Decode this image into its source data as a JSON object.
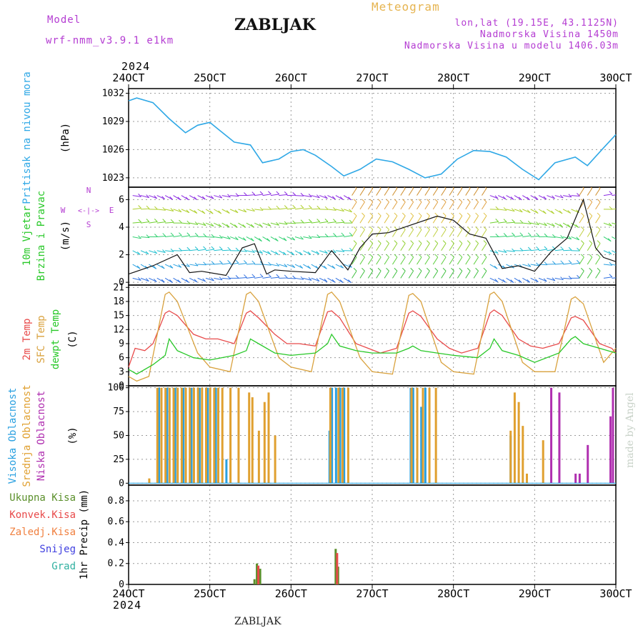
{
  "header": {
    "model_label": "Model",
    "model_name": "wrf-nmm_v3.9.1 e1km",
    "station": "ZABLJAK",
    "chart_title": "Meteogram",
    "lonlat": "lon,lat (19.15E, 43.1125N)",
    "altitude": "Nadmorska Visina 1450m",
    "model_altitude": "Nadmorska Visina u modelu 1406.03m",
    "year_top": "2024",
    "year_bottom": "2024",
    "footer_station": "ZABLJAK",
    "credit": "made by Angel"
  },
  "colors": {
    "pressure": "#2fa8e6",
    "temp2m": "#e84a4a",
    "sfc": "#d9a23e",
    "dew": "#28c828",
    "high": "#2aa0e0",
    "mid": "#e0a030",
    "low": "#b030b0",
    "wind_speed": "#111111",
    "precip_total": "#5a8f2a",
    "precip_conv": "#e84a4a",
    "precip_frozen": "#f08040",
    "snow": "#4040e0",
    "hail": "#30b0a0",
    "violet": "#b43cd2"
  },
  "chart_data": [
    {
      "type": "line",
      "panel": "pressure",
      "ylabels": [
        "Pritisak na nivou mora",
        "(hPa)"
      ],
      "x_ticks": [
        "24OCT",
        "25OCT",
        "26OCT",
        "27OCT",
        "28OCT",
        "29OCT",
        "30OCT"
      ],
      "y_ticks": [
        1023,
        1026,
        1029,
        1032
      ],
      "ylim": [
        1022,
        1032.5
      ],
      "series": [
        {
          "x": [
            0,
            0.1,
            0.3,
            0.5,
            0.7,
            0.85,
            1.0,
            1.1,
            1.3,
            1.5,
            1.65,
            1.85,
            2.0,
            2.15,
            2.3,
            2.5,
            2.65,
            2.85,
            3.05,
            3.25,
            3.45,
            3.65,
            3.85,
            4.05,
            4.25,
            4.45,
            4.65,
            4.85,
            5.05,
            5.25,
            5.5,
            5.65,
            5.85,
            6.0
          ],
          "values": [
            1031.2,
            1031.5,
            1031.0,
            1029.3,
            1027.8,
            1028.6,
            1028.9,
            1028.2,
            1026.8,
            1026.5,
            1024.6,
            1025.0,
            1025.8,
            1026.0,
            1025.4,
            1024.2,
            1023.2,
            1023.9,
            1025.0,
            1024.7,
            1023.9,
            1023.0,
            1023.4,
            1025.0,
            1025.9,
            1025.8,
            1025.2,
            1023.9,
            1022.8,
            1024.6,
            1025.2,
            1024.3,
            1026.2,
            1027.6
          ]
        }
      ]
    },
    {
      "type": "line",
      "panel": "wind",
      "ylabels": [
        "10m Vjetar",
        "Brzina i Pravac",
        "(m/s)"
      ],
      "compass": [
        "N",
        "S",
        "W",
        "E",
        "<-|->"
      ],
      "y_ticks": [
        0,
        2,
        4,
        6
      ],
      "ylim": [
        -0.2,
        6.9
      ],
      "series": [
        {
          "name": "speed",
          "x": [
            0,
            0.3,
            0.6,
            0.75,
            0.9,
            1.2,
            1.4,
            1.55,
            1.7,
            1.8,
            2.0,
            2.3,
            2.5,
            2.7,
            2.85,
            3.0,
            3.2,
            3.5,
            3.8,
            4.0,
            4.2,
            4.4,
            4.6,
            4.8,
            5.0,
            5.2,
            5.4,
            5.6,
            5.75,
            5.85,
            6.0
          ],
          "values": [
            0.6,
            1.2,
            2.0,
            0.7,
            0.8,
            0.5,
            2.5,
            2.8,
            0.6,
            0.9,
            0.8,
            0.7,
            2.3,
            0.9,
            2.5,
            3.5,
            3.6,
            4.2,
            4.8,
            4.5,
            3.5,
            3.2,
            1.0,
            1.2,
            0.8,
            2.2,
            3.2,
            6.0,
            2.5,
            1.8,
            1.5
          ]
        }
      ]
    },
    {
      "type": "line",
      "panel": "temperature",
      "ylabels": [
        "2m Temp",
        "SFC Temp",
        "dewpt Temp",
        "(C)"
      ],
      "y_ticks": [
        0,
        3,
        6,
        9,
        12,
        15,
        18,
        21
      ],
      "ylim": [
        0,
        21.5
      ],
      "series": [
        {
          "name": "2m Temp",
          "x": [
            0,
            0.08,
            0.2,
            0.3,
            0.45,
            0.5,
            0.6,
            0.8,
            0.95,
            1.1,
            1.3,
            1.45,
            1.5,
            1.6,
            1.8,
            1.95,
            2.1,
            2.3,
            2.45,
            2.5,
            2.6,
            2.8,
            2.95,
            3.1,
            3.3,
            3.45,
            3.5,
            3.6,
            3.8,
            3.95,
            4.1,
            4.3,
            4.45,
            4.5,
            4.6,
            4.8,
            4.95,
            5.1,
            5.3,
            5.45,
            5.5,
            5.6,
            5.8,
            5.95,
            6.0
          ],
          "values": [
            4,
            8,
            7.5,
            9,
            15.5,
            16,
            15,
            11,
            10,
            10,
            9,
            15.5,
            16,
            14.5,
            11,
            9,
            9,
            8.5,
            15.8,
            16,
            14.5,
            9,
            8,
            7,
            8,
            15.5,
            16,
            14.8,
            10,
            8,
            7,
            8,
            15.5,
            16.2,
            15,
            10,
            8.5,
            8,
            9,
            14.5,
            14.8,
            14,
            9,
            8,
            7
          ]
        },
        {
          "name": "SFC Temp",
          "x": [
            0,
            0.1,
            0.25,
            0.45,
            0.5,
            0.6,
            0.85,
            1.0,
            1.25,
            1.45,
            1.5,
            1.6,
            1.85,
            2.0,
            2.25,
            2.45,
            2.5,
            2.6,
            2.85,
            3.0,
            3.25,
            3.45,
            3.5,
            3.6,
            3.85,
            4.0,
            4.25,
            4.45,
            4.5,
            4.6,
            4.85,
            5.0,
            5.25,
            5.45,
            5.5,
            5.6,
            5.85,
            6.0
          ],
          "values": [
            2,
            1,
            2,
            19.5,
            20,
            18,
            7,
            4,
            3,
            19.5,
            20,
            18,
            6,
            4,
            3,
            19.5,
            20,
            18,
            6,
            3,
            2.5,
            19.3,
            19.7,
            18,
            5,
            3,
            2.5,
            19.5,
            20,
            18,
            5,
            3,
            3,
            18.5,
            19,
            17.5,
            5,
            8
          ]
        },
        {
          "name": "dewpt Temp",
          "x": [
            0,
            0.1,
            0.3,
            0.45,
            0.5,
            0.6,
            0.8,
            1.0,
            1.3,
            1.45,
            1.5,
            1.6,
            1.8,
            2.0,
            2.3,
            2.45,
            2.5,
            2.6,
            2.8,
            3.0,
            3.3,
            3.45,
            3.5,
            3.6,
            3.8,
            4.0,
            4.3,
            4.45,
            4.5,
            4.6,
            4.8,
            5.0,
            5.3,
            5.45,
            5.5,
            5.6,
            5.8,
            6.0
          ],
          "values": [
            3.5,
            2.5,
            4.5,
            6.5,
            10,
            7.5,
            6,
            5.5,
            6.5,
            7.5,
            10,
            9,
            7,
            6.5,
            7,
            9,
            11,
            8.5,
            7.5,
            7,
            7,
            8,
            8.5,
            7.5,
            7,
            6.5,
            6,
            8,
            10,
            7.5,
            6.5,
            5,
            7,
            10,
            10.5,
            9,
            8,
            7
          ]
        }
      ]
    },
    {
      "type": "bar",
      "panel": "clouds",
      "ylabels": [
        "Visoka Oblacnost",
        "Srednja Oblacnost",
        "Niska Oblacnost",
        "(%)"
      ],
      "y_ticks": [
        0,
        25,
        50,
        75,
        100
      ],
      "ylim": [
        -2,
        102
      ],
      "series": [
        {
          "name": "Visoka Oblacnost",
          "x": [
            0.37,
            0.47,
            0.57,
            0.67,
            0.77,
            0.87,
            0.97,
            1.07,
            1.2,
            2.47,
            2.5,
            2.55,
            2.6,
            2.65,
            3.47,
            3.5,
            3.55,
            3.6,
            3.65,
            4.7
          ],
          "values": [
            100,
            100,
            100,
            100,
            100,
            100,
            100,
            100,
            25,
            55,
            100,
            100,
            100,
            100,
            100,
            100,
            100,
            80,
            100,
            50
          ]
        },
        {
          "name": "Srednja Oblacnost",
          "x": [
            0.25,
            0.35,
            0.4,
            0.45,
            0.5,
            0.55,
            0.6,
            0.65,
            0.7,
            0.75,
            0.8,
            0.85,
            0.9,
            0.95,
            1.0,
            1.05,
            1.1,
            1.15,
            1.25,
            1.35,
            1.48,
            1.52,
            1.6,
            1.67,
            1.72,
            1.8,
            2.48,
            2.58,
            2.63,
            2.7,
            3.48,
            3.55,
            3.62,
            3.7,
            3.78,
            4.7,
            4.75,
            4.8,
            4.85,
            4.9,
            5.1
          ],
          "values": [
            5,
            100,
            100,
            100,
            100,
            100,
            100,
            100,
            100,
            100,
            100,
            100,
            100,
            100,
            100,
            100,
            100,
            100,
            100,
            100,
            95,
            90,
            55,
            85,
            95,
            50,
            100,
            100,
            100,
            100,
            100,
            100,
            100,
            100,
            100,
            55,
            95,
            85,
            60,
            10,
            45
          ]
        },
        {
          "name": "Niska Oblacnost",
          "x": [
            5.2,
            5.3,
            5.5,
            5.55,
            5.65,
            5.93,
            5.96
          ],
          "values": [
            100,
            95,
            10,
            10,
            40,
            70,
            100
          ]
        }
      ]
    },
    {
      "type": "bar",
      "panel": "precipitation",
      "ylabels": [
        "1hr Precip (mm)"
      ],
      "legend": [
        "Ukupna Kisa",
        "Konvek.Kisa",
        "Zaledj.Kisa",
        "Snijeg",
        "Grad"
      ],
      "y_ticks": [
        0,
        0.2,
        0.4,
        0.6,
        0.8
      ],
      "ylim": [
        0,
        0.95
      ],
      "series": [
        {
          "name": "Ukupna Kisa",
          "x": [
            1.55,
            1.58,
            1.62,
            2.55,
            2.58
          ],
          "values": [
            0.05,
            0.2,
            0.15,
            0.34,
            0.17
          ]
        },
        {
          "name": "Konvek.Kisa",
          "x": [
            1.58,
            2.55
          ],
          "values": [
            0.18,
            0.3
          ]
        }
      ]
    }
  ]
}
